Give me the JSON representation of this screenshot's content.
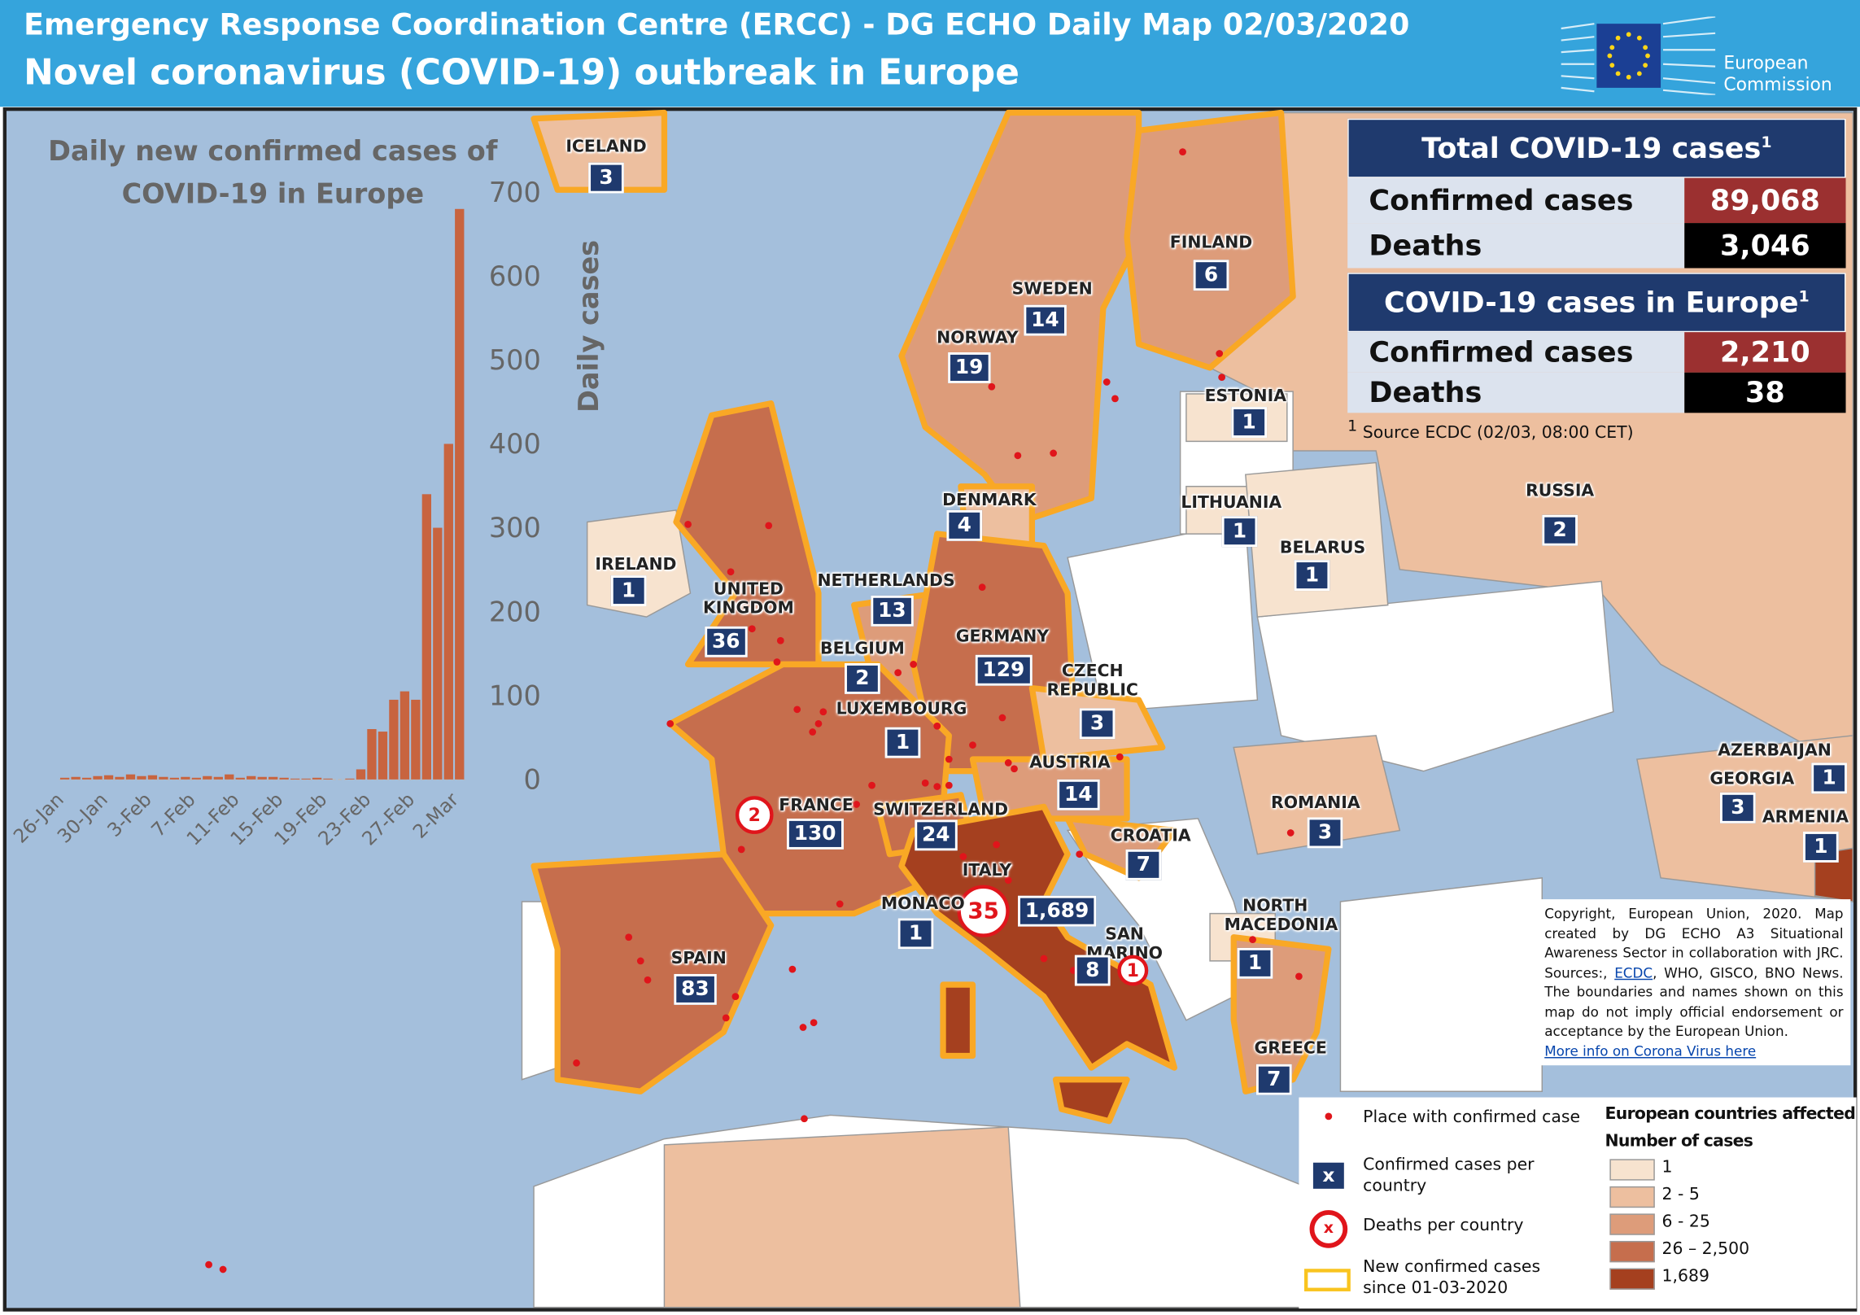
{
  "header": {
    "title": "Emergency Response Coordination Centre (ERCC) - DG ECHO Daily Map 02/03/2020",
    "subtitle": "Novel coronavirus (COVID-19) outbreak in Europe",
    "logo": [
      "European",
      "Commission"
    ]
  },
  "chart_data": {
    "type": "bar",
    "title": "Daily new confirmed cases of COVID-19 in Europe",
    "y_label": "Daily cases",
    "categories": [
      "26-Jan",
      null,
      null,
      null,
      "30-Jan",
      null,
      null,
      null,
      "3-Feb",
      null,
      null,
      null,
      "7-Feb",
      null,
      null,
      null,
      "11-Feb",
      null,
      null,
      null,
      "15-Feb",
      null,
      null,
      null,
      "19-Feb",
      null,
      null,
      null,
      "23-Feb",
      null,
      null,
      null,
      "27-Feb",
      null,
      null,
      null,
      "2-Mar"
    ],
    "values": [
      2,
      3,
      2,
      4,
      5,
      3,
      6,
      4,
      5,
      3,
      2,
      3,
      2,
      4,
      3,
      6,
      2,
      4,
      3,
      3,
      2,
      1,
      1,
      2,
      1,
      0,
      1,
      12,
      60,
      57,
      95,
      105,
      95,
      340,
      300,
      400,
      680
    ],
    "color": "#c8643f",
    "ylim": [
      0,
      700
    ],
    "yticks": [
      0,
      100,
      200,
      300,
      400,
      500,
      600,
      700
    ]
  },
  "summary": {
    "note_mark": "1",
    "total": {
      "title": "Total COVID-19 cases",
      "rows": [
        {
          "label": "Confirmed cases",
          "value": "89,068"
        },
        {
          "label": "Deaths",
          "value": "3,046"
        }
      ]
    },
    "europe": {
      "title": "COVID-19 cases in Europe",
      "rows": [
        {
          "label": "Confirmed cases",
          "value": "2,210"
        },
        {
          "label": "Deaths",
          "value": "38"
        }
      ]
    },
    "source": "Source ECDC (02/03, 08:00 CET)"
  },
  "countries": [
    {
      "name": "ICELAND",
      "cases": "3"
    },
    {
      "name": "FINLAND",
      "cases": "6"
    },
    {
      "name": "SWEDEN",
      "cases": "14"
    },
    {
      "name": "NORWAY",
      "cases": "19"
    },
    {
      "name": "ESTONIA",
      "cases": "1"
    },
    {
      "name": "DENMARK",
      "cases": "4"
    },
    {
      "name": "LITHUANIA",
      "cases": "1"
    },
    {
      "name": "RUSSIA",
      "cases": "2"
    },
    {
      "name": "IRELAND",
      "cases": "1"
    },
    {
      "name": "BELARUS",
      "cases": "1"
    },
    {
      "name": "UNITED KINGDOM",
      "cases": "36"
    },
    {
      "name": "NETHERLANDS",
      "cases": "13"
    },
    {
      "name": "BELGIUM",
      "cases": "2"
    },
    {
      "name": "GERMANY",
      "cases": "129"
    },
    {
      "name": "CZECH REPUBLIC",
      "cases": "3"
    },
    {
      "name": "LUXEMBOURG",
      "cases": "1"
    },
    {
      "name": "AUSTRIA",
      "cases": "14"
    },
    {
      "name": "FRANCE",
      "cases": "130",
      "deaths": "2"
    },
    {
      "name": "SWITZERLAND",
      "cases": "24"
    },
    {
      "name": "CROATIA",
      "cases": "7"
    },
    {
      "name": "ITALY",
      "cases": "1,689",
      "deaths": "35"
    },
    {
      "name": "MONACO",
      "cases": "1"
    },
    {
      "name": "SAN MARINO",
      "cases": "8",
      "deaths": "1"
    },
    {
      "name": "ROMANIA",
      "cases": "3"
    },
    {
      "name": "AZERBAIJAN",
      "cases": "1"
    },
    {
      "name": "GEORGIA",
      "cases": "3"
    },
    {
      "name": "ARMENIA",
      "cases": "1"
    },
    {
      "name": "NORTH MACEDONIA",
      "cases": "1"
    },
    {
      "name": "SPAIN",
      "cases": "83"
    },
    {
      "name": "GREECE",
      "cases": "7"
    }
  ],
  "legend": {
    "place": "Place with confirmed case",
    "box_symbol": "x",
    "cases": "Confirmed cases per country",
    "deaths": "Deaths per country",
    "new": "New confirmed cases since 01-03-2020",
    "scale_title": "European countries affected",
    "scale_subtitle": "Number of cases",
    "classes": [
      {
        "label": "1",
        "color": "#f7e3cf"
      },
      {
        "label": "2 - 5",
        "color": "#edbf9f"
      },
      {
        "label": "6 - 25",
        "color": "#dd9c7a"
      },
      {
        "label": "26 – 2,500",
        "color": "#c66e4d"
      },
      {
        "label": "1,689",
        "color": "#a5401f"
      }
    ]
  },
  "copyright": {
    "text": "Copyright, European Union, 2020. Map created by DG ECHO A3 Situational Awareness Sector in collaboration with JRC. Sources:,",
    "link": "ECDC",
    "text_after": ", WHO, GISCO, BNO News. The boundaries and names shown on this map do not imply official endorsement or acceptance  by the European Union.",
    "more": "More info on Corona Virus here"
  }
}
